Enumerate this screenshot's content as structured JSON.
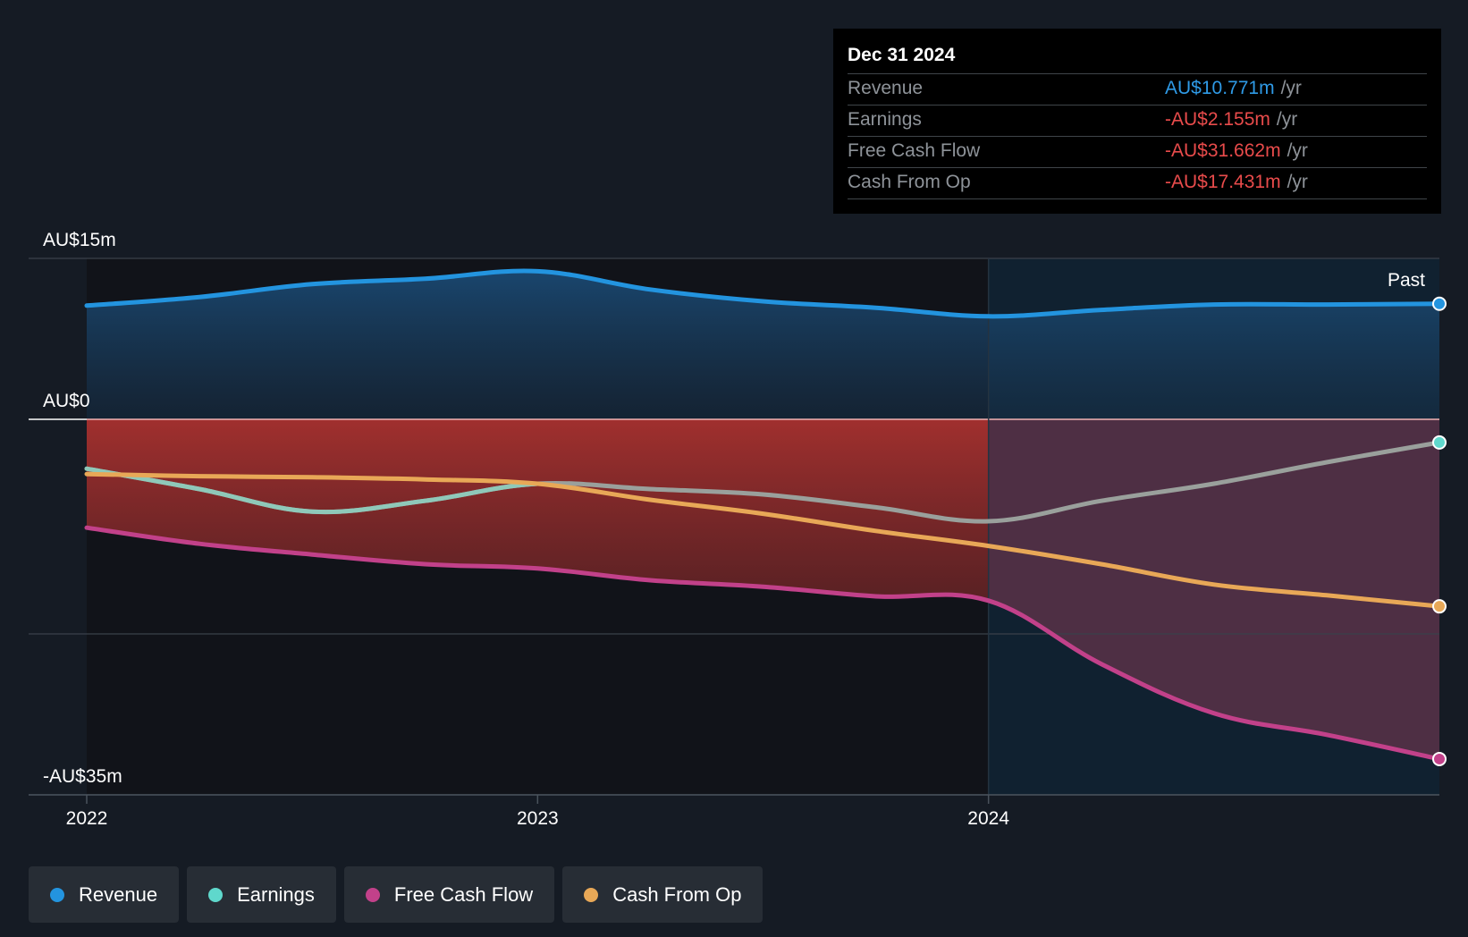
{
  "tooltip": {
    "date": "Dec 31 2024",
    "rows": [
      {
        "label": "Revenue",
        "value": "AU$10.771m",
        "unit": "/yr"
      },
      {
        "label": "Earnings",
        "value": "-AU$2.155m",
        "unit": "/yr"
      },
      {
        "label": "Free Cash Flow",
        "value": "-AU$31.662m",
        "unit": "/yr"
      },
      {
        "label": "Cash From Op",
        "value": "-AU$17.431m",
        "unit": "/yr"
      }
    ]
  },
  "legend": [
    {
      "label": "Revenue",
      "color": "#2394df"
    },
    {
      "label": "Earnings",
      "color": "#5fd8cc"
    },
    {
      "label": "Free Cash Flow",
      "color": "#c2418a"
    },
    {
      "label": "Cash From Op",
      "color": "#e8a857"
    }
  ],
  "chart_data": {
    "type": "line",
    "title": "",
    "xlabel": "",
    "ylabel": "",
    "x_ticks": [
      2022,
      2023,
      2024
    ],
    "y_tick_labels": [
      {
        "value": 15,
        "label": "AU$15m"
      },
      {
        "value": 0,
        "label": "AU$0"
      },
      {
        "value": -35,
        "label": "-AU$35m"
      }
    ],
    "y_gridlines": [
      15,
      0,
      -20,
      -35
    ],
    "ylim": [
      -35,
      15
    ],
    "xlim": [
      2021.87,
      2024.93
    ],
    "past_divider_x": 2024.0,
    "past_label": "Past",
    "series": [
      {
        "name": "Revenue",
        "color": "#2394df",
        "x": [
          2022.0,
          2022.25,
          2022.5,
          2022.75,
          2023.0,
          2023.25,
          2023.5,
          2023.75,
          2024.0,
          2024.25,
          2024.5,
          2024.75,
          2025.0
        ],
        "values": [
          10.6,
          11.4,
          12.6,
          13.1,
          13.8,
          12.1,
          11.0,
          10.4,
          9.6,
          10.2,
          10.7,
          10.7,
          10.771
        ]
      },
      {
        "name": "Earnings",
        "color": "#5fd8cc",
        "x": [
          2022.0,
          2022.25,
          2022.5,
          2022.75,
          2023.0,
          2023.25,
          2023.5,
          2023.75,
          2024.0,
          2024.25,
          2024.5,
          2024.75,
          2025.0
        ],
        "values": [
          -4.6,
          -6.5,
          -8.6,
          -7.6,
          -6.0,
          -6.5,
          -7.0,
          -8.2,
          -9.5,
          -7.6,
          -6.0,
          -4.0,
          -2.155
        ]
      },
      {
        "name": "Free Cash Flow",
        "color": "#c2418a",
        "x": [
          2022.0,
          2022.25,
          2022.5,
          2022.75,
          2023.0,
          2023.25,
          2023.5,
          2023.75,
          2024.0,
          2024.25,
          2024.5,
          2024.75,
          2025.0
        ],
        "values": [
          -10.1,
          -11.6,
          -12.6,
          -13.5,
          -13.9,
          -15.0,
          -15.6,
          -16.5,
          -16.9,
          -22.8,
          -27.4,
          -29.4,
          -31.662
        ]
      },
      {
        "name": "Cash From Op",
        "color": "#e8a857",
        "x": [
          2022.0,
          2022.25,
          2022.5,
          2022.75,
          2023.0,
          2023.25,
          2023.5,
          2023.75,
          2024.0,
          2024.25,
          2024.5,
          2024.75,
          2025.0
        ],
        "values": [
          -5.1,
          -5.3,
          -5.4,
          -5.6,
          -6.0,
          -7.5,
          -8.8,
          -10.4,
          -11.8,
          -13.5,
          -15.4,
          -16.4,
          -17.431
        ]
      }
    ]
  }
}
